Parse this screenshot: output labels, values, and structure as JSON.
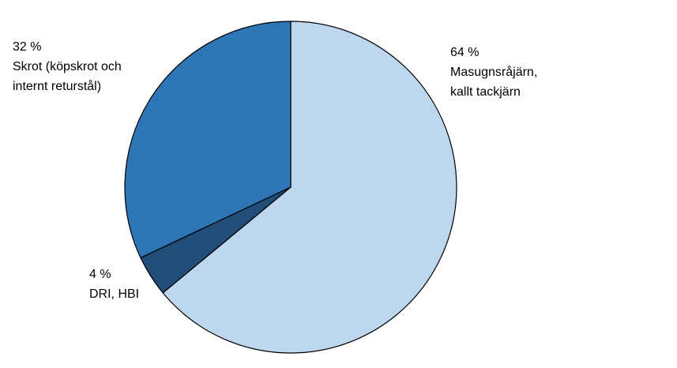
{
  "chart_data": {
    "type": "pie",
    "categories": [
      [
        "Masugnsråjärn,",
        "kallt tackjärn"
      ],
      [
        "DRI, HBI"
      ],
      [
        "Skrot (köpskrot och",
        "internt returstål)"
      ]
    ],
    "values": [
      64,
      4,
      32
    ],
    "value_labels": [
      "64 %",
      "4 %",
      "32 %"
    ],
    "colors": [
      "#bdd7ee",
      "#214d78",
      "#2e75b6"
    ]
  }
}
